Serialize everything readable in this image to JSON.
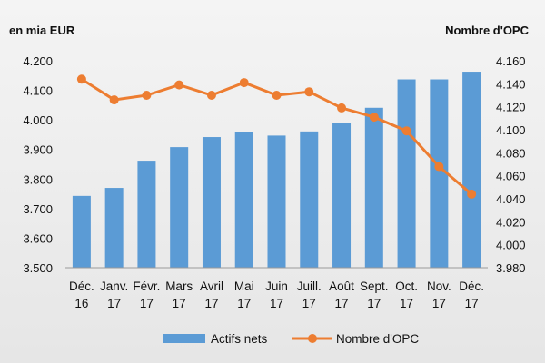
{
  "chart_data": {
    "type": "bar+line",
    "left_axis_title": "en mia EUR",
    "right_axis_title": "Nombre d'OPC",
    "categories": [
      [
        "Déc.",
        "16"
      ],
      [
        "Janv.",
        "17"
      ],
      [
        "Févr.",
        "17"
      ],
      [
        "Mars",
        "17"
      ],
      [
        "Avril",
        "17"
      ],
      [
        "Mai",
        "17"
      ],
      [
        "Juin",
        "17"
      ],
      [
        "Juill.",
        "17"
      ],
      [
        "Août",
        "17"
      ],
      [
        "Sept.",
        "17"
      ],
      [
        "Oct.",
        "17"
      ],
      [
        "Nov.",
        "17"
      ],
      [
        "Déc.",
        "17"
      ]
    ],
    "series": [
      {
        "name": "Actifs nets",
        "type": "bar",
        "axis": "left",
        "color": "#5b9bd5",
        "values": [
          3743,
          3770,
          3862,
          3908,
          3942,
          3958,
          3947,
          3961,
          3990,
          4041,
          4137,
          4137,
          4163
        ]
      },
      {
        "name": "Nombre d'OPC",
        "type": "line",
        "axis": "right",
        "color": "#ed7d31",
        "values": [
          4144,
          4126,
          4130,
          4139,
          4130,
          4141,
          4130,
          4133,
          4119,
          4111,
          4099,
          4068,
          4044
        ]
      }
    ],
    "left_axis": {
      "ylim": [
        3500,
        4200
      ],
      "ticks": [
        3500,
        3600,
        3700,
        3800,
        3900,
        4000,
        4100,
        4200
      ],
      "tick_labels": [
        "3.500",
        "3.600",
        "3.700",
        "3.800",
        "3.900",
        "4.000",
        "4.100",
        "4.200"
      ]
    },
    "right_axis": {
      "ylim": [
        3980,
        4160
      ],
      "ticks": [
        3980,
        4000,
        4020,
        4040,
        4060,
        4080,
        4100,
        4120,
        4140,
        4160
      ],
      "tick_labels": [
        "3.980",
        "4.000",
        "4.020",
        "4.040",
        "4.060",
        "4.080",
        "4.100",
        "4.120",
        "4.140",
        "4.160"
      ]
    },
    "grid": false,
    "legend_position": "bottom-center"
  }
}
